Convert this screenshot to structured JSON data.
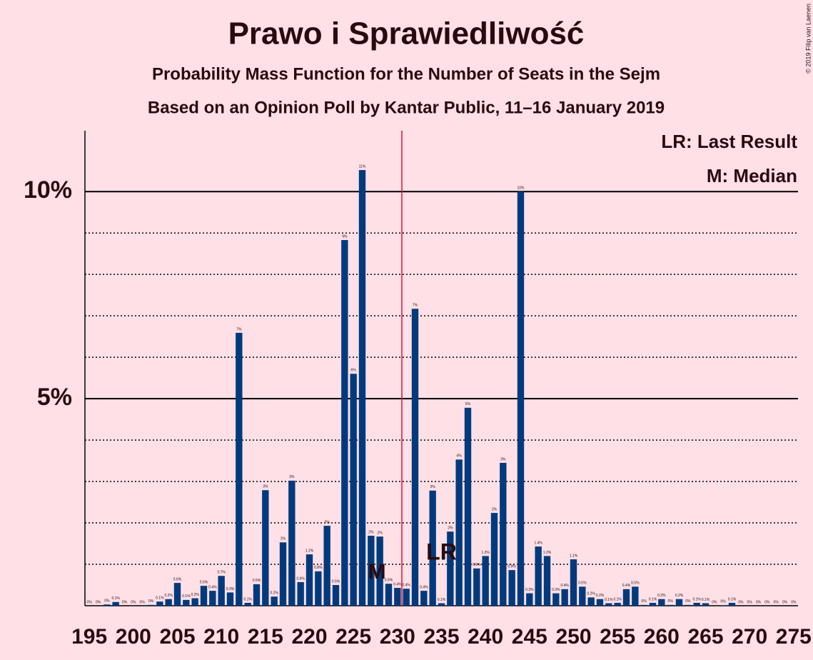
{
  "chart_data": {
    "type": "bar",
    "title": "Prawo i Sprawiedliwość",
    "subtitle": "Probability Mass Function for the Number of Seats in the Sejm",
    "subtitle2": "Based on an Opinion Poll by Kantar Public, 11–16 January 2019",
    "copyright": "© 2019 Filip van Laenen",
    "legend": [
      "LR: Last Result",
      "M: Median"
    ],
    "legend_position": "upper right",
    "color": "#003a7d",
    "x": [
      195,
      196,
      197,
      198,
      199,
      200,
      201,
      202,
      203,
      204,
      205,
      206,
      207,
      208,
      209,
      210,
      211,
      212,
      213,
      214,
      215,
      216,
      217,
      218,
      219,
      220,
      221,
      222,
      223,
      224,
      225,
      226,
      227,
      228,
      229,
      230,
      231,
      232,
      233,
      234,
      235,
      236,
      237,
      238,
      239,
      240,
      241,
      242,
      243,
      244,
      245,
      246,
      247,
      248,
      249,
      250,
      251,
      252,
      253,
      254,
      255,
      256,
      257,
      258,
      259,
      260,
      261,
      262,
      263,
      264,
      265,
      266,
      267,
      268,
      269,
      270,
      271,
      272,
      273,
      274,
      275
    ],
    "values": [
      0,
      0,
      0.03,
      0.09,
      0,
      0,
      0,
      0.02,
      0.1,
      0.16,
      0.55,
      0.14,
      0.18,
      0.48,
      0.36,
      0.72,
      0.32,
      6.59,
      0.07,
      0.52,
      2.79,
      0.22,
      1.53,
      3.02,
      0.57,
      1.24,
      0.83,
      1.93,
      0.5,
      8.83,
      5.6,
      10.52,
      1.69,
      1.67,
      0.53,
      0.43,
      0.41,
      7.17,
      0.36,
      2.78,
      0.06,
      1.79,
      3.53,
      4.78,
      0.9,
      1.2,
      2.24,
      3.45,
      0.86,
      10.0,
      0.3,
      1.43,
      1.2,
      0.3,
      0.4,
      1.12,
      0.46,
      0.2,
      0.16,
      0.06,
      0.07,
      0.4,
      0.46,
      0.02,
      0.07,
      0.16,
      0.02,
      0.16,
      0.02,
      0.07,
      0.06,
      0,
      0.01,
      0.07,
      0,
      0,
      0,
      0,
      0,
      0,
      0
    ],
    "value_labels": [
      "0%",
      "0%",
      "0%",
      "0.1%",
      "0%",
      "0%",
      "0%",
      "0%",
      "0.1%",
      "0.2%",
      "0.6%",
      "0.1%",
      "0.2%",
      "0.5%",
      "0.4%",
      "0.7%",
      "0.3%",
      "7%",
      "0.1%",
      "0.5%",
      "3%",
      "0.2%",
      "2%",
      "3%",
      "0.6%",
      "1.2%",
      "0.8%",
      "2%",
      "0.5%",
      "9%",
      "6%",
      "11%",
      "2%",
      "2%",
      "0.5%",
      "0.4%",
      "0.4%",
      "7%",
      "0.4%",
      "3%",
      "0.1%",
      "2%",
      "4%",
      "5%",
      "0.9%",
      "1.2%",
      "2%",
      "3%",
      "0.9%",
      "10%",
      "0.3%",
      "1.4%",
      "1.2%",
      "0.3%",
      "0.4%",
      "1.1%",
      "0.5%",
      "0.2%",
      "0.2%",
      "0.1%",
      "0.1%",
      "0.4%",
      "0.5%",
      "0%",
      "0.1%",
      "0.2%",
      "0%",
      "0.2%",
      "0%",
      "0.1%",
      "0.1%",
      "0%",
      "0%",
      "0.1%",
      "0%",
      "0%",
      "0%",
      "0%",
      "0%",
      "0%",
      "0%"
    ],
    "xlim": [
      194.5,
      275.5
    ],
    "xticks": [
      195,
      200,
      205,
      210,
      215,
      220,
      225,
      230,
      235,
      240,
      245,
      250,
      255,
      260,
      265,
      270,
      275
    ],
    "ylim": [
      0,
      11.47
    ],
    "yticks": [
      {
        "value": 5,
        "label": "5%"
      },
      {
        "value": 10,
        "label": "10%"
      }
    ],
    "minor_yticks": [
      1,
      2,
      3,
      4,
      6,
      7,
      8,
      9
    ],
    "majority": 231,
    "median": 228,
    "median_label": "M",
    "last_result": 235,
    "last_result_label": "LR"
  }
}
